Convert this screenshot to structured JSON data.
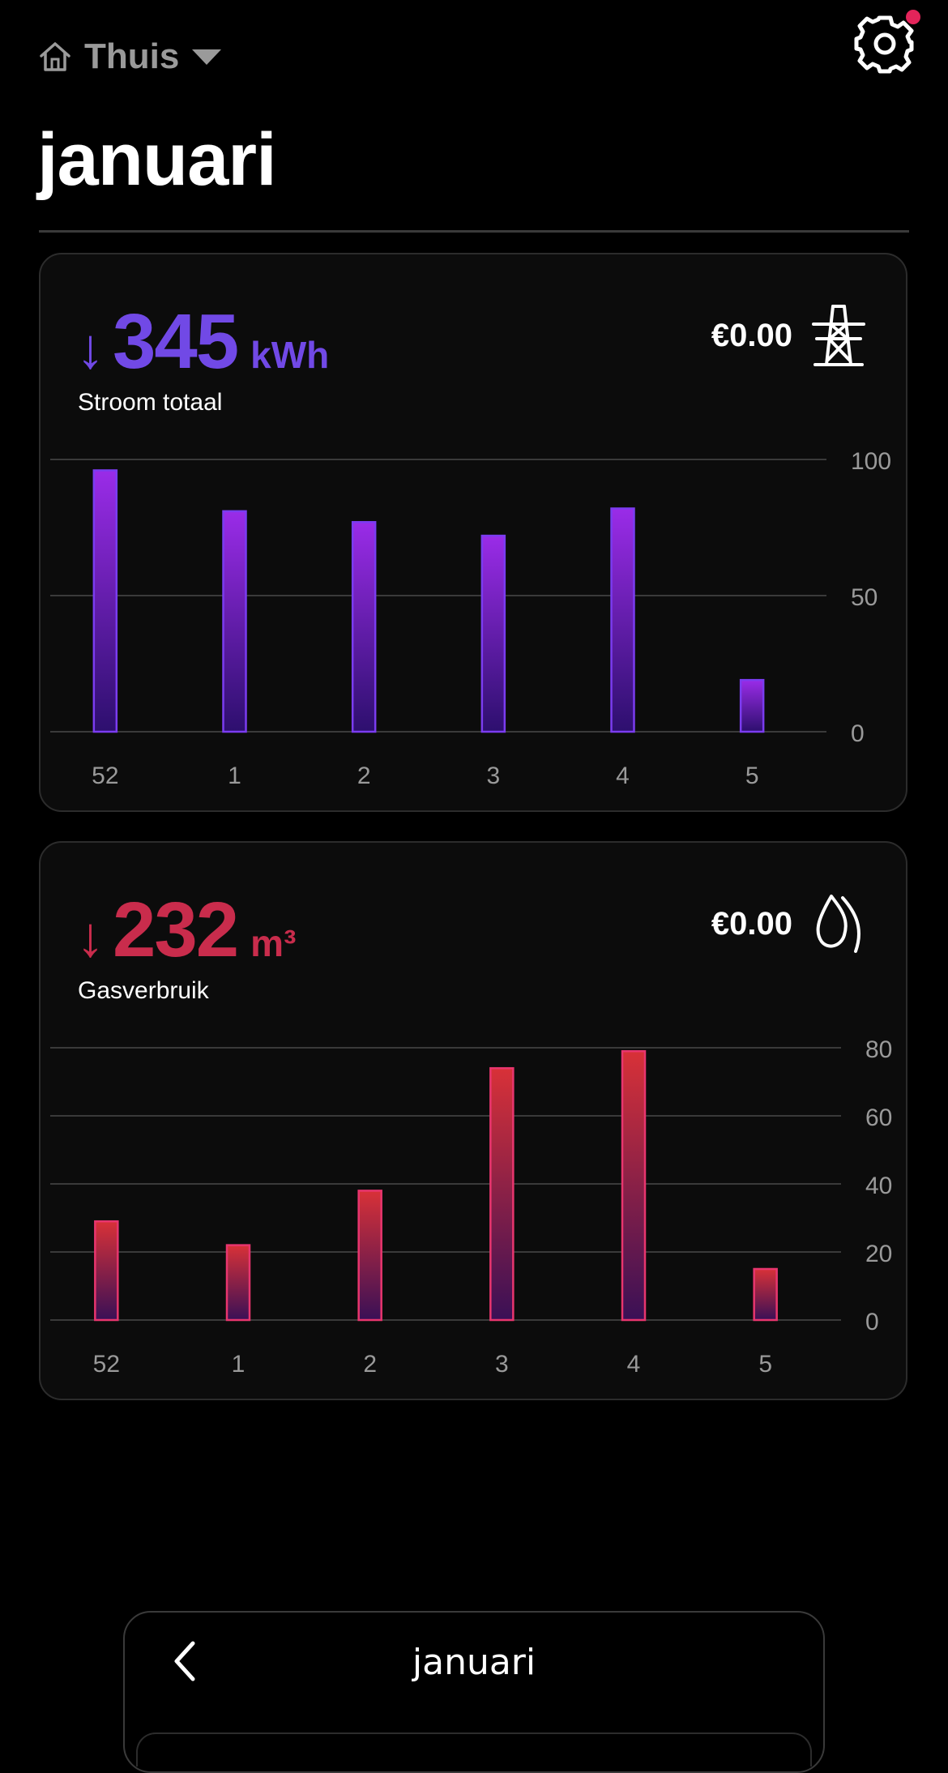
{
  "header": {
    "home_label": "Thuis",
    "title": "januari"
  },
  "electricity": {
    "arrow": "↓",
    "total": "345",
    "unit": "kWh",
    "label": "Stroom totaal",
    "cost": "€0.00",
    "icon": "power-pylon-icon",
    "color": "#7149e6"
  },
  "gas": {
    "arrow": "↓",
    "total": "232",
    "unit": "m³",
    "label": "Gasverbruik",
    "cost": "€0.00",
    "icon": "flame-icon",
    "color": "#c92c4c"
  },
  "chart_data": [
    {
      "type": "bar",
      "categories": [
        "52",
        "1",
        "2",
        "3",
        "4",
        "5"
      ],
      "values": [
        96,
        81,
        77,
        72,
        82,
        19
      ],
      "ylim": [
        0,
        100
      ],
      "yticks": [
        0,
        50,
        100
      ],
      "grid": true
    },
    {
      "type": "bar",
      "categories": [
        "52",
        "1",
        "2",
        "3",
        "4",
        "5"
      ],
      "values": [
        29,
        22,
        38,
        74,
        79,
        15
      ],
      "ylim": [
        0,
        80
      ],
      "yticks": [
        0,
        20,
        40,
        60,
        80
      ],
      "grid": true
    }
  ],
  "footer": {
    "month": "januari"
  },
  "colors": {
    "background": "#000000",
    "card": "#0c0c0c",
    "grid": "#3a3a3a",
    "tick": "#9a9a9a",
    "notification": "#e3245a"
  }
}
